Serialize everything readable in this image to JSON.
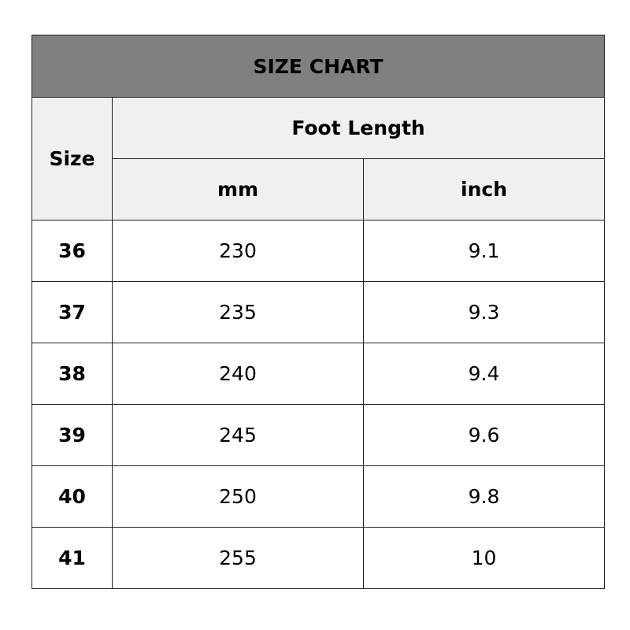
{
  "title": "SIZE CHART",
  "headers": {
    "size": "Size",
    "group": "Foot Length",
    "mm": "mm",
    "inch": "inch"
  },
  "rows": [
    {
      "size": "36",
      "mm": "230",
      "inch": "9.1"
    },
    {
      "size": "37",
      "mm": "235",
      "inch": "9.3"
    },
    {
      "size": "38",
      "mm": "240",
      "inch": "9.4"
    },
    {
      "size": "39",
      "mm": "245",
      "inch": "9.6"
    },
    {
      "size": "40",
      "mm": "250",
      "inch": "9.8"
    },
    {
      "size": "41",
      "mm": "255",
      "inch": "10"
    }
  ],
  "colors": {
    "title_bg": "#808080",
    "header_bg": "#f0f0f0"
  }
}
